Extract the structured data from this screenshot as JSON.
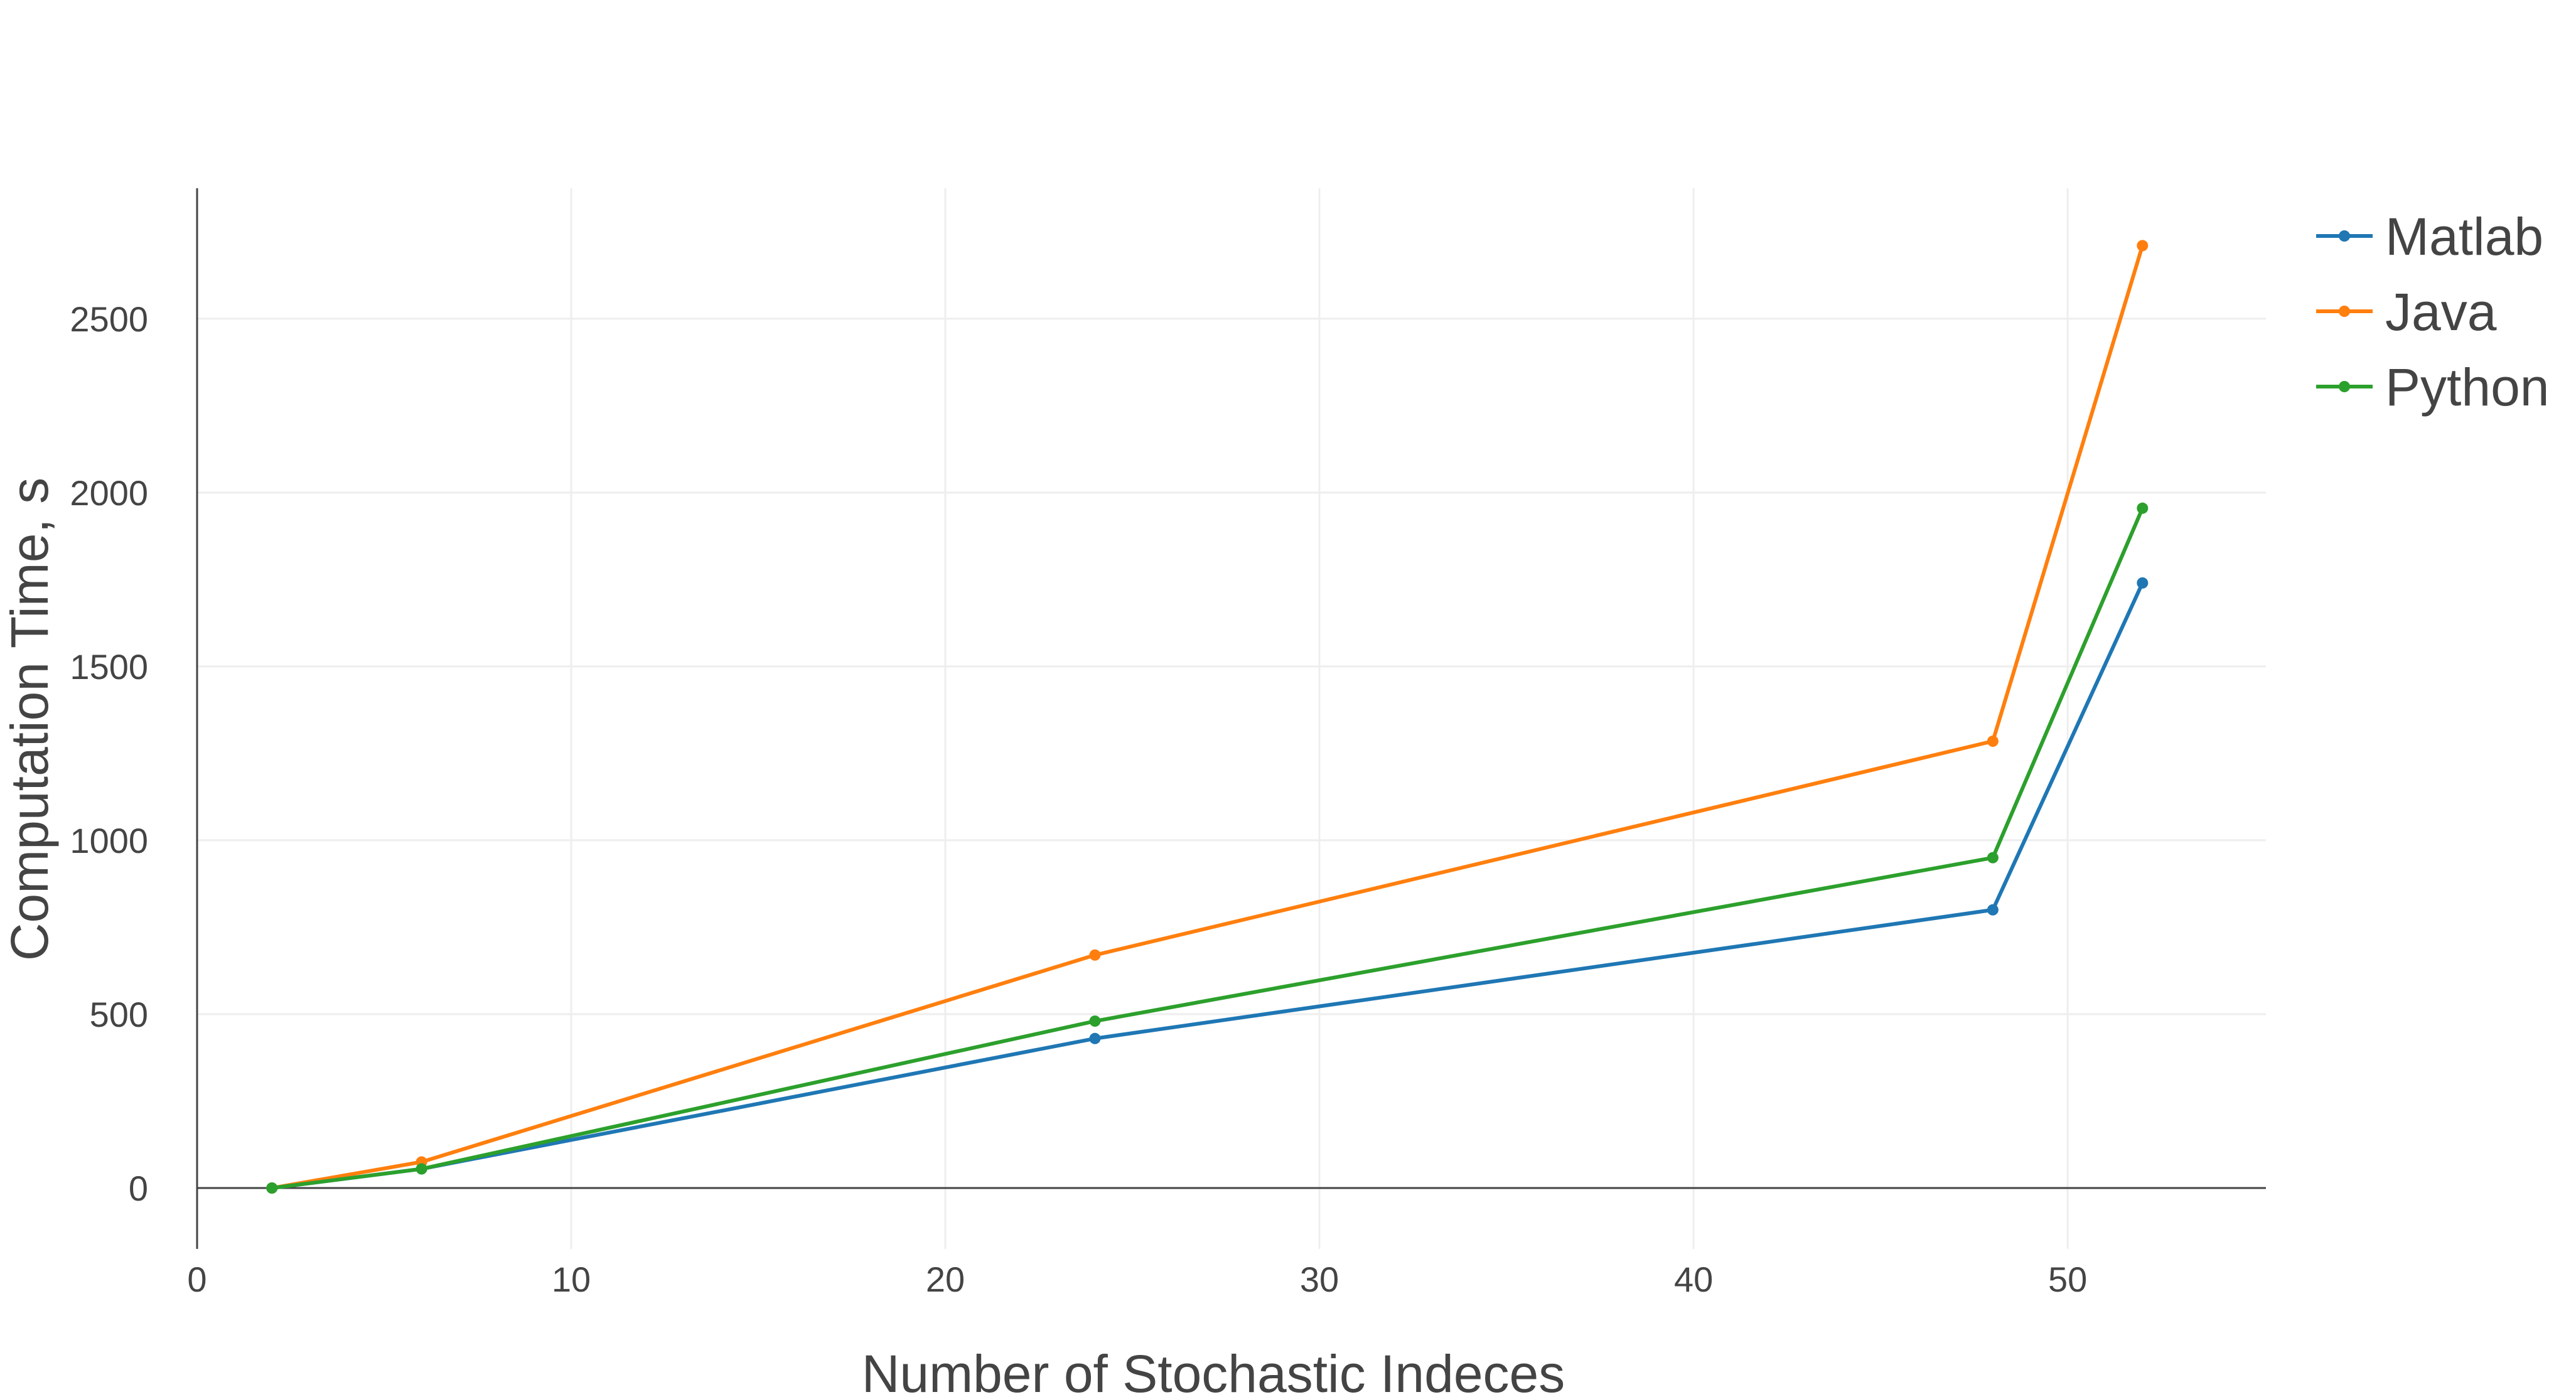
{
  "chart_data": {
    "type": "line",
    "title": "",
    "xlabel": "Number of Stochastic Indeces",
    "ylabel": "Computation Time, s",
    "xlim": [
      0,
      55.3
    ],
    "ylim": [
      -175,
      2875
    ],
    "xticks": [
      0,
      10,
      20,
      30,
      40,
      50
    ],
    "yticks": [
      0,
      500,
      1000,
      1500,
      2000,
      2500
    ],
    "grid": true,
    "legend_position": "top-right",
    "x": [
      2,
      6,
      24,
      48,
      52
    ],
    "series": [
      {
        "name": "Matlab",
        "color": "#1f77b4",
        "values": [
          0,
          55,
          430,
          800,
          1740
        ]
      },
      {
        "name": "Java",
        "color": "#ff7f0e",
        "values": [
          0,
          75,
          670,
          1285,
          2710
        ]
      },
      {
        "name": "Python",
        "color": "#2ca02c",
        "values": [
          0,
          55,
          480,
          950,
          1955
        ]
      }
    ]
  }
}
